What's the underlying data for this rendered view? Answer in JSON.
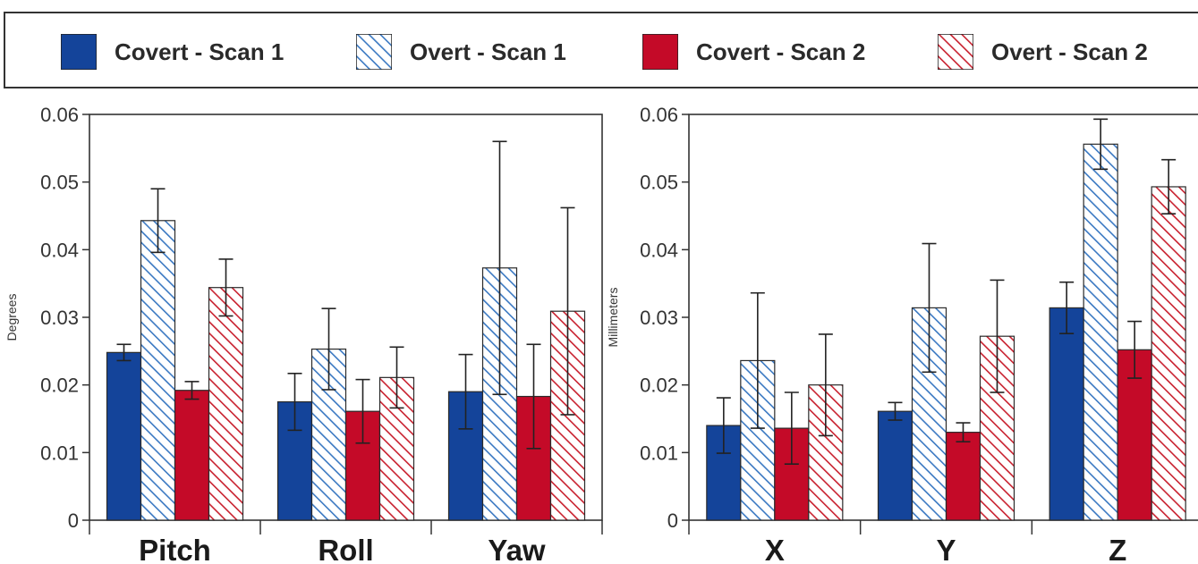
{
  "legend": {
    "items": [
      {
        "label": "Covert - Scan 1",
        "color": "#14449a",
        "pattern": "solid"
      },
      {
        "label": "Overt - Scan 1",
        "color": "#3a78c2",
        "pattern": "hatched"
      },
      {
        "label": "Covert - Scan 2",
        "color": "#c40a28",
        "pattern": "solid"
      },
      {
        "label": "Overt - Scan 2",
        "color": "#c8202e",
        "pattern": "hatched"
      }
    ]
  },
  "chart_data": [
    {
      "type": "bar",
      "ylabel": "Degrees",
      "ylim": [
        0,
        0.06
      ],
      "yticks": [
        "0",
        "0.01",
        "0.02",
        "0.03",
        "0.04",
        "0.05",
        "0.06"
      ],
      "categories": [
        "Pitch",
        "Roll",
        "Yaw"
      ],
      "error_bars": true,
      "series": [
        {
          "name": "Covert - Scan 1",
          "values": [
            0.0248,
            0.0175,
            0.019
          ],
          "errors": [
            0.0012,
            0.0042,
            0.0055
          ]
        },
        {
          "name": "Overt - Scan 1",
          "values": [
            0.0443,
            0.0253,
            0.0373
          ],
          "errors": [
            0.0047,
            0.006,
            0.0187
          ]
        },
        {
          "name": "Covert - Scan 2",
          "values": [
            0.0192,
            0.0161,
            0.0183
          ],
          "errors": [
            0.0013,
            0.0047,
            0.0077
          ]
        },
        {
          "name": "Overt - Scan 2",
          "values": [
            0.0344,
            0.0211,
            0.0309
          ],
          "errors": [
            0.0042,
            0.0045,
            0.0153
          ]
        }
      ]
    },
    {
      "type": "bar",
      "ylabel": "Millimeters",
      "ylim": [
        0,
        0.06
      ],
      "yticks": [
        "0",
        "0.01",
        "0.02",
        "0.03",
        "0.04",
        "0.05",
        "0.06"
      ],
      "categories": [
        "X",
        "Y",
        "Z"
      ],
      "error_bars": true,
      "series": [
        {
          "name": "Covert - Scan 1",
          "values": [
            0.014,
            0.0161,
            0.0314
          ],
          "errors": [
            0.0041,
            0.0013,
            0.0038
          ]
        },
        {
          "name": "Overt - Scan 1",
          "values": [
            0.0236,
            0.0314,
            0.0556
          ],
          "errors": [
            0.01,
            0.0095,
            0.0037
          ]
        },
        {
          "name": "Covert - Scan 2",
          "values": [
            0.0136,
            0.013,
            0.0252
          ],
          "errors": [
            0.0053,
            0.0014,
            0.0042
          ]
        },
        {
          "name": "Overt - Scan 2",
          "values": [
            0.02,
            0.0272,
            0.0493
          ],
          "errors": [
            0.0075,
            0.0083,
            0.004
          ]
        }
      ]
    }
  ]
}
